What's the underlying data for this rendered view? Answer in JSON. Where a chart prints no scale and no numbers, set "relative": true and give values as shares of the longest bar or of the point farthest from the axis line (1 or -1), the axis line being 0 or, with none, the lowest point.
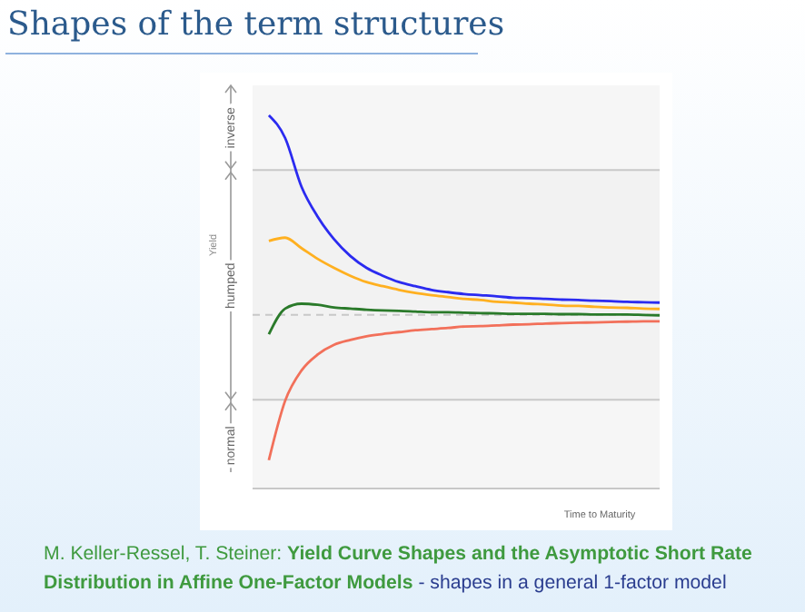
{
  "chart_data": {
    "type": "line",
    "title": "Shapes of the term structures",
    "xlabel": "Time to Maturity",
    "ylabel": "Yield",
    "relative": true,
    "categories": [
      null,
      null,
      null,
      null,
      null,
      null,
      null,
      null,
      null,
      null,
      null,
      null,
      null,
      null,
      null,
      null,
      null,
      null,
      null,
      null,
      null,
      null,
      null,
      null,
      null
    ],
    "series": [
      {
        "color": "#2b2bf0",
        "values": [
          1,
          0.939,
          0.809,
          0.728,
          0.668,
          0.623,
          0.591,
          0.57,
          0.553,
          0.542,
          0.532,
          0.526,
          0.521,
          0.518,
          0.515,
          0.511,
          0.51,
          0.508,
          0.506,
          0.505,
          0.503,
          0.502,
          0.5,
          0.499,
          0.498
        ]
      },
      {
        "color": "#ffb020",
        "values": [
          0.663,
          0.672,
          0.644,
          0.615,
          0.591,
          0.57,
          0.553,
          0.542,
          0.532,
          0.524,
          0.518,
          0.513,
          0.508,
          0.505,
          0.5,
          0.498,
          0.495,
          0.493,
          0.49,
          0.489,
          0.487,
          0.485,
          0.484,
          0.482,
          0.481
        ]
      },
      {
        "color": "#2a7a2a",
        "values": [
          0.413,
          0.482,
          0.495,
          0.492,
          0.485,
          0.482,
          0.479,
          0.477,
          0.476,
          0.474,
          0.472,
          0.472,
          0.471,
          0.47,
          0.469,
          0.468,
          0.468,
          0.468,
          0.467,
          0.467,
          0.466,
          0.466,
          0.466,
          0.465,
          0.464
        ]
      },
      {
        "color": "#f2705a",
        "values": [
          0.076,
          0.235,
          0.316,
          0.359,
          0.385,
          0.398,
          0.408,
          0.414,
          0.419,
          0.424,
          0.427,
          0.43,
          0.434,
          0.435,
          0.437,
          0.439,
          0.44,
          0.442,
          0.443,
          0.444,
          0.445,
          0.446,
          0.447,
          0.448,
          0.448
        ]
      }
    ],
    "ref_lines": [
      {
        "axis": "y",
        "value": 0.853,
        "color": "#c8c8c8"
      },
      {
        "axis": "y",
        "value": 0.465,
        "color": "#c8c8c8",
        "line_style": "dashed"
      },
      {
        "axis": "y",
        "value": 0.238,
        "color": "#c8c8c8"
      }
    ],
    "bands": [
      {
        "axis": "y",
        "from": 0.853,
        "to": 1.08,
        "label": "inverse",
        "color": "#f6f6f6"
      },
      {
        "axis": "y",
        "from": 0.238,
        "to": 0.853,
        "label": "humped",
        "color": "#f2f2f2"
      },
      {
        "axis": "y",
        "from": 0,
        "to": 0.238,
        "label": "normal",
        "color": "#f6f6f6"
      }
    ],
    "annotations": [
      "M. Keller-Ressel, T. Steiner:",
      "Yield Curve Shapes and the Asymptotic Short Rate Distribution in Affine One-Factor Models",
      "- shapes in a general 1-factor model"
    ],
    "legend": false,
    "marker": "none",
    "line_style": "solid",
    "grid": false
  }
}
